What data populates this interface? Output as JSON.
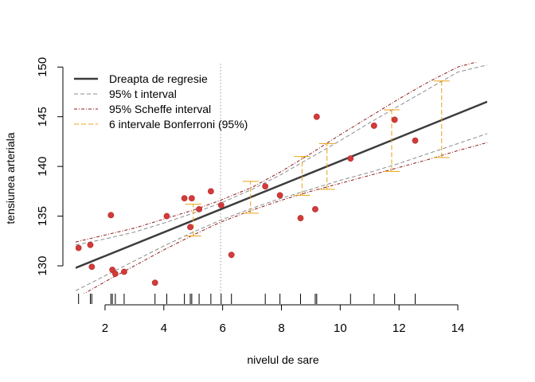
{
  "chart_data": {
    "type": "scatter",
    "xlabel": "nivelul de sare",
    "ylabel": "tensiunea arteriala",
    "xlim": [
      1.0,
      15.0
    ],
    "ylim": [
      127.2,
      150.5
    ],
    "x_ticks": [
      2,
      4,
      6,
      8,
      10,
      12,
      14
    ],
    "y_ticks": [
      130,
      135,
      140,
      145,
      150
    ],
    "points": [
      {
        "x": 1.1,
        "y": 131.8
      },
      {
        "x": 1.5,
        "y": 132.1
      },
      {
        "x": 1.55,
        "y": 129.9
      },
      {
        "x": 2.2,
        "y": 135.1
      },
      {
        "x": 2.25,
        "y": 129.6
      },
      {
        "x": 2.35,
        "y": 129.2
      },
      {
        "x": 2.65,
        "y": 129.4
      },
      {
        "x": 3.7,
        "y": 128.3
      },
      {
        "x": 4.1,
        "y": 135.0
      },
      {
        "x": 4.7,
        "y": 136.8
      },
      {
        "x": 4.9,
        "y": 133.9
      },
      {
        "x": 4.95,
        "y": 136.8
      },
      {
        "x": 5.2,
        "y": 135.7
      },
      {
        "x": 5.6,
        "y": 137.5
      },
      {
        "x": 5.95,
        "y": 136.1
      },
      {
        "x": 6.3,
        "y": 131.1
      },
      {
        "x": 7.45,
        "y": 138.0
      },
      {
        "x": 7.95,
        "y": 137.1
      },
      {
        "x": 8.65,
        "y": 134.8
      },
      {
        "x": 9.15,
        "y": 135.7
      },
      {
        "x": 9.2,
        "y": 145.0
      },
      {
        "x": 10.35,
        "y": 140.8
      },
      {
        "x": 11.15,
        "y": 144.1
      },
      {
        "x": 11.85,
        "y": 144.7
      },
      {
        "x": 12.55,
        "y": 142.6
      }
    ],
    "rug_x": [
      1.1,
      1.5,
      1.55,
      2.2,
      2.25,
      2.35,
      2.65,
      3.7,
      4.1,
      4.7,
      4.9,
      4.95,
      5.2,
      5.6,
      5.95,
      6.3,
      7.45,
      7.95,
      8.65,
      9.15,
      9.2,
      10.35,
      11.15,
      11.85,
      12.55
    ],
    "mean_x": 5.93,
    "regression": {
      "intercept": 128.6,
      "slope": 1.194
    },
    "t_interval": {
      "x": [
        1.0,
        2.0,
        3.0,
        4.0,
        5.0,
        5.93,
        7.0,
        8.0,
        9.0,
        10.0,
        11.0,
        12.0,
        13.0,
        14.0,
        15.0
      ],
      "lower": [
        127.5,
        129.0,
        130.5,
        132.0,
        133.4,
        134.6,
        135.8,
        136.8,
        137.7,
        138.6,
        139.4,
        140.3,
        141.3,
        142.3,
        143.3
      ],
      "upper": [
        132.1,
        132.7,
        133.4,
        134.3,
        135.3,
        136.3,
        137.7,
        139.2,
        140.9,
        142.6,
        144.4,
        146.1,
        147.8,
        149.5,
        150.2
      ]
    },
    "scheffe_interval": {
      "x": [
        1.0,
        2.0,
        3.0,
        4.0,
        5.0,
        5.93,
        7.0,
        8.0,
        9.0,
        10.0,
        11.0,
        12.0,
        13.0,
        14.0,
        15.0
      ],
      "lower": [
        126.7,
        128.4,
        130.0,
        131.6,
        133.1,
        134.4,
        135.6,
        136.6,
        137.5,
        138.3,
        139.1,
        139.9,
        140.7,
        141.6,
        142.4
      ],
      "upper": [
        132.4,
        133.1,
        133.8,
        134.7,
        135.6,
        136.6,
        137.9,
        139.5,
        141.3,
        143.2,
        145.0,
        146.8,
        148.5,
        150.0,
        150.8
      ]
    },
    "bonferroni": [
      {
        "x": 5.0,
        "lower": 133.0,
        "upper": 136.2
      },
      {
        "x": 6.95,
        "lower": 135.3,
        "upper": 138.5
      },
      {
        "x": 8.7,
        "lower": 137.1,
        "upper": 141.0
      },
      {
        "x": 9.55,
        "lower": 137.7,
        "upper": 142.3
      },
      {
        "x": 11.75,
        "lower": 139.5,
        "upper": 145.7
      },
      {
        "x": 13.45,
        "lower": 140.9,
        "upper": 148.6
      }
    ],
    "legend": [
      {
        "label": "Dreapta de regresie",
        "style": "solid-thick"
      },
      {
        "label": "95% t interval",
        "style": "dashed-gray"
      },
      {
        "label": "95% Scheffe interval",
        "style": "dashdot-darkred"
      },
      {
        "label": "6 intervale Bonferroni (95%)",
        "style": "dashed-orange"
      }
    ],
    "legend_position": "top-left",
    "grid": false,
    "colors": {
      "points": "#d33a3a",
      "regression": "#3c3c3c",
      "t_interval": "#8c8c8c",
      "scheffe": "#8b1a1a",
      "bonferroni": "#e8a317",
      "mean_line": "#9a9a9a"
    }
  }
}
